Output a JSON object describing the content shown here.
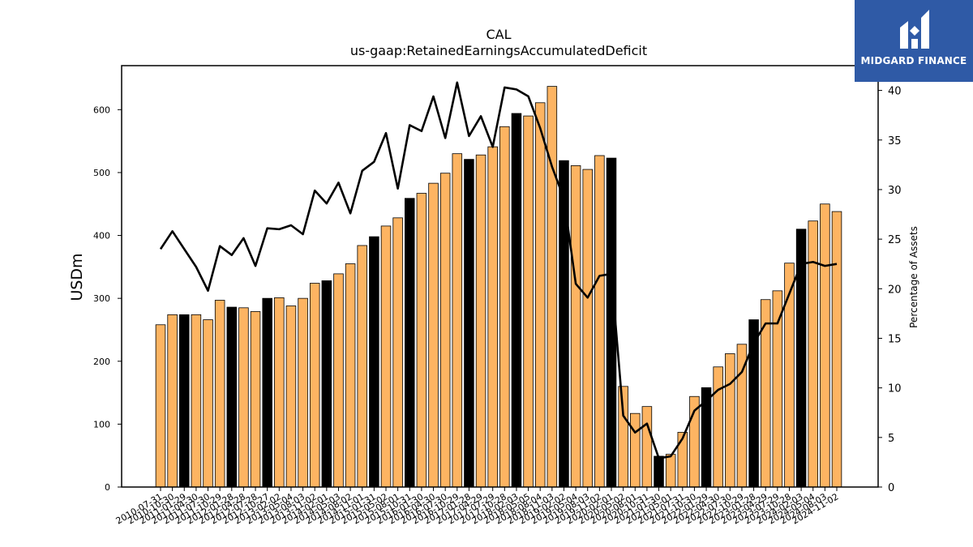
{
  "chart_data": {
    "type": "bar",
    "title": "CAL",
    "subtitle": "us-gaap:RetainedEarningsAccumulatedDeficit",
    "ylabel": "USDm",
    "y2label": "Percentage of Assets",
    "ylim": [
      0,
      670
    ],
    "y2lim": [
      0,
      42.5
    ],
    "yticks": [
      0,
      100,
      200,
      300,
      400,
      500,
      600
    ],
    "y2ticks": [
      0,
      5,
      10,
      15,
      20,
      25,
      30,
      35,
      40
    ],
    "categories": [
      "2010-07-31",
      "2010-10-30",
      "2011-01-29",
      "2011-04-30",
      "2011-07-30",
      "2011-10-29",
      "2012-01-28",
      "2012-04-28",
      "2012-07-28",
      "2012-10-27",
      "2013-02-02",
      "2013-05-04",
      "2013-08-03",
      "2013-11-02",
      "2014-02-01",
      "2014-05-03",
      "2014-08-02",
      "2014-11-01",
      "2015-01-31",
      "2015-05-02",
      "2015-08-01",
      "2015-10-31",
      "2016-01-30",
      "2016-04-30",
      "2016-07-30",
      "2016-10-29",
      "2017-01-28",
      "2017-04-29",
      "2017-07-29",
      "2017-10-28",
      "2018-02-03",
      "2018-05-05",
      "2018-08-04",
      "2018-11-03",
      "2019-02-02",
      "2019-05-04",
      "2019-08-03",
      "2019-11-02",
      "2020-02-01",
      "2020-05-02",
      "2020-08-01",
      "2020-10-31",
      "2021-01-30",
      "2021-05-01",
      "2021-07-31",
      "2021-10-30",
      "2022-01-29",
      "2022-04-30",
      "2022-07-30",
      "2022-10-29",
      "2023-01-28",
      "2023-04-29",
      "2023-07-29",
      "2023-10-28",
      "2024-02-03",
      "2024-05-04",
      "2024-08-03",
      "2024-11-02"
    ],
    "series": [
      {
        "kind": "bar",
        "axis": "left",
        "values": [
          258,
          274,
          274,
          274,
          266,
          297,
          286,
          285,
          279,
          300,
          301,
          288,
          300,
          324,
          328,
          339,
          355,
          384,
          398,
          415,
          428,
          459,
          467,
          483,
          499,
          530,
          521,
          528,
          541,
          573,
          594,
          590,
          611,
          637,
          519,
          511,
          505,
          527,
          523,
          160,
          117,
          128,
          49,
          52,
          87,
          144,
          158,
          191,
          212,
          227,
          266,
          298,
          312,
          356,
          410,
          423,
          450,
          438
        ]
      },
      {
        "kind": "line",
        "axis": "right",
        "values": [
          24,
          25.8,
          24,
          22.2,
          19.8,
          24.3,
          23.4,
          25.1,
          22.3,
          26.1,
          26,
          26.4,
          25.5,
          29.9,
          28.6,
          30.7,
          27.6,
          31.9,
          32.8,
          35.7,
          30.1,
          36.5,
          35.9,
          39.4,
          35.2,
          40.8,
          35.4,
          37.4,
          34.3,
          40.3,
          40.1,
          39.4,
          36.2,
          32.3,
          29.1,
          20.5,
          19.1,
          21.3,
          21.5,
          7.2,
          5.5,
          6.4,
          2.9,
          3.1,
          4.9,
          7.7,
          8.7,
          9.8,
          10.4,
          11.6,
          14.5,
          16.5,
          16.5,
          19.5,
          22.5,
          22.7,
          22.3,
          22.5
        ]
      }
    ],
    "dark_bar_indices": [
      2,
      6,
      9,
      14,
      18,
      21,
      26,
      30,
      34,
      38,
      42,
      46,
      50,
      54
    ],
    "colors": {
      "bar": "#fdb462",
      "bar_dark": "#000000",
      "bar_edge": "#000000",
      "line": "#000000"
    },
    "grid": false,
    "legend": "none"
  },
  "logo": {
    "text": "MIDGARD FINANCE",
    "background": "#2f5aa6",
    "icon": "midgard-logo-mark"
  }
}
